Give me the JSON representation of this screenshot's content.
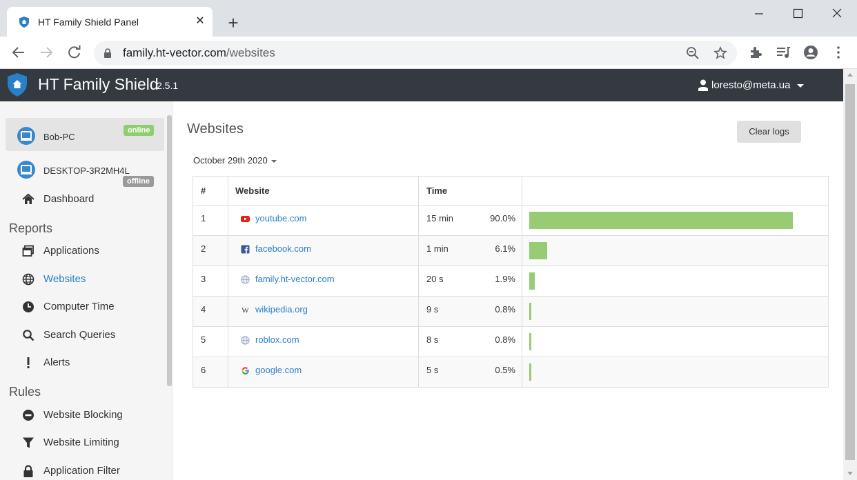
{
  "browser": {
    "tab_title": "HT Family Shield Panel",
    "url_host": "family.ht-vector.com",
    "url_path": "/websites"
  },
  "app": {
    "name": "HT Family Shield",
    "version": "2.5.1",
    "user_email": "loresto@meta.ua"
  },
  "sidebar": {
    "devices": [
      {
        "name": "Bob-PC",
        "status": "online"
      },
      {
        "name": "DESKTOP-3R2MH4L",
        "status": "offline"
      }
    ],
    "dashboard_label": "Dashboard",
    "reports_heading": "Reports",
    "reports": [
      {
        "label": "Applications",
        "icon": "window-icon"
      },
      {
        "label": "Websites",
        "icon": "globe-icon"
      },
      {
        "label": "Computer Time",
        "icon": "clock-icon"
      },
      {
        "label": "Search Queries",
        "icon": "search-icon"
      },
      {
        "label": "Alerts",
        "icon": "exclamation-icon"
      }
    ],
    "rules_heading": "Rules",
    "rules": [
      {
        "label": "Website Blocking",
        "icon": "minus-circle-icon"
      },
      {
        "label": "Website Limiting",
        "icon": "filter-icon"
      },
      {
        "label": "Application Filter",
        "icon": "lock-icon"
      }
    ]
  },
  "main": {
    "title": "Websites",
    "clear_logs_label": "Clear logs",
    "date": "October 29th 2020",
    "columns": {
      "num": "#",
      "website": "Website",
      "time": "Time"
    },
    "rows": [
      {
        "num": "1",
        "site": "youtube.com",
        "icon": "youtube-icon",
        "time": "15 min",
        "pct": "90.0%",
        "fraction": 0.9
      },
      {
        "num": "2",
        "site": "facebook.com",
        "icon": "facebook-icon",
        "time": "1 min",
        "pct": "6.1%",
        "fraction": 0.061
      },
      {
        "num": "3",
        "site": "family.ht-vector.com",
        "icon": "globe-icon",
        "time": "20 s",
        "pct": "1.9%",
        "fraction": 0.019
      },
      {
        "num": "4",
        "site": "wikipedia.org",
        "icon": "wikipedia-icon",
        "time": "9 s",
        "pct": "0.8%",
        "fraction": 0.008
      },
      {
        "num": "5",
        "site": "roblox.com",
        "icon": "globe-icon",
        "time": "8 s",
        "pct": "0.8%",
        "fraction": 0.008
      },
      {
        "num": "6",
        "site": "google.com",
        "icon": "google-icon",
        "time": "5 s",
        "pct": "0.5%",
        "fraction": 0.005
      }
    ]
  },
  "colors": {
    "header_bg": "#343a40",
    "accent": "#2a7fc9",
    "bar": "#97cc75",
    "online": "#8fcd6f",
    "offline": "#9a9a9a"
  }
}
